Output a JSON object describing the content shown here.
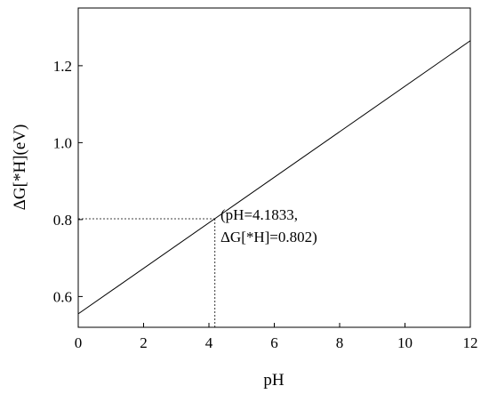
{
  "chart_data": {
    "type": "line",
    "title": "",
    "xlabel": "pH",
    "ylabel": "ΔG[*H](eV)",
    "xlim": [
      0,
      12
    ],
    "ylim": [
      0.52,
      1.35
    ],
    "xticks": [
      0,
      2,
      4,
      6,
      8,
      10,
      12
    ],
    "yticks": [
      0.6,
      0.8,
      1.0,
      1.2
    ],
    "xtick_labels": [
      "0",
      "2",
      "4",
      "6",
      "8",
      "10",
      "12"
    ],
    "ytick_labels": [
      "0.6",
      "0.8",
      "1.0",
      "1.2"
    ],
    "grid": false,
    "series": [
      {
        "x": [
          0,
          12
        ],
        "y": [
          0.555,
          1.265
        ]
      }
    ],
    "highlight_point": {
      "x": 4.1833,
      "y": 0.802
    },
    "annotation": {
      "line1": "(pH=4.1833,",
      "line2": "ΔG[*H]=0.802)"
    }
  }
}
